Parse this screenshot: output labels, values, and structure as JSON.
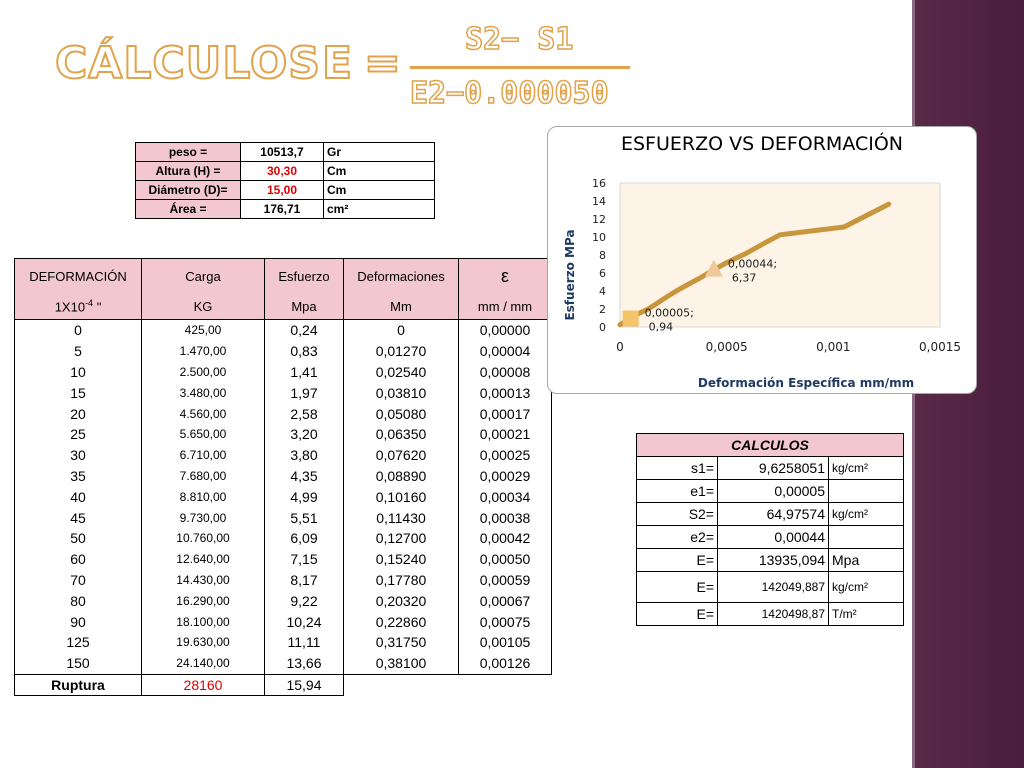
{
  "title": {
    "main": "CÁLCULOS",
    "e": "E",
    "equals": "=",
    "numerator": "S2− S1",
    "denominator": "E2−0.000050"
  },
  "props": [
    {
      "label": "peso =",
      "value": "10513,7",
      "unit": "Gr",
      "red": false
    },
    {
      "label": "Altura (H) =",
      "value": "30,30",
      "unit": "Cm",
      "red": true
    },
    {
      "label": "Diámetro (D)=",
      "value": "15,00",
      "unit": "Cm",
      "red": true
    },
    {
      "label": "Área =",
      "value": "176,71",
      "unit": "cm²",
      "red": false
    }
  ],
  "main_table": {
    "headers1": [
      "DEFORMACIÓN",
      "Carga",
      "Esfuerzo",
      "Deformaciones",
      "ε"
    ],
    "headers2": [
      "1X10-4 \"",
      "KG",
      "Mpa",
      "Mm",
      "mm / mm"
    ],
    "rows": [
      [
        "0",
        "425,00",
        "0,24",
        "0",
        "0,00000"
      ],
      [
        "5",
        "1.470,00",
        "0,83",
        "0,01270",
        "0,00004"
      ],
      [
        "10",
        "2.500,00",
        "1,41",
        "0,02540",
        "0,00008"
      ],
      [
        "15",
        "3.480,00",
        "1,97",
        "0,03810",
        "0,00013"
      ],
      [
        "20",
        "4.560,00",
        "2,58",
        "0,05080",
        "0,00017"
      ],
      [
        "25",
        "5.650,00",
        "3,20",
        "0,06350",
        "0,00021"
      ],
      [
        "30",
        "6.710,00",
        "3,80",
        "0,07620",
        "0,00025"
      ],
      [
        "35",
        "7.680,00",
        "4,35",
        "0,08890",
        "0,00029"
      ],
      [
        "40",
        "8.810,00",
        "4,99",
        "0,10160",
        "0,00034"
      ],
      [
        "45",
        "9.730,00",
        "5,51",
        "0,11430",
        "0,00038"
      ],
      [
        "50",
        "10.760,00",
        "6,09",
        "0,12700",
        "0,00042"
      ],
      [
        "60",
        "12.640,00",
        "7,15",
        "0,15240",
        "0,00050"
      ],
      [
        "70",
        "14.430,00",
        "8,17",
        "0,17780",
        "0,00059"
      ],
      [
        "80",
        "16.290,00",
        "9,22",
        "0,20320",
        "0,00067"
      ],
      [
        "90",
        "18.100,00",
        "10,24",
        "0,22860",
        "0,00075"
      ],
      [
        "125",
        "19.630,00",
        "11,11",
        "0,31750",
        "0,00105"
      ],
      [
        "150",
        "24.140,00",
        "13,66",
        "0,38100",
        "0,00126"
      ]
    ],
    "rupture": {
      "label": "Ruptura",
      "load": "28160",
      "stress": "15,94"
    }
  },
  "calculos": {
    "header": "CALCULOS",
    "rows": [
      {
        "k": "s1=",
        "v": "9,6258051",
        "u": "kg/cm²"
      },
      {
        "k": "e1=",
        "v": "0,00005",
        "u": ""
      },
      {
        "k": "S2=",
        "v": "64,97574",
        "u": "kg/cm²"
      },
      {
        "k": "e2=",
        "v": "0,00044",
        "u": ""
      },
      {
        "k": "E=",
        "v": "13935,094",
        "u": "Mpa"
      },
      {
        "k": "E=",
        "v": "142049,887",
        "u": "kg/cm²"
      },
      {
        "k": "E=",
        "v": "1420498,87",
        "u": "T/m²"
      }
    ]
  },
  "chart_data": {
    "type": "line",
    "title": "ESFUERZO VS DEFORMACIÓN",
    "xlabel": "Deformación Específica mm/mm",
    "ylabel": "Esfuerzo  MPa",
    "xlim": [
      0,
      0.0015
    ],
    "ylim": [
      0,
      16
    ],
    "x_ticks": [
      "0",
      "0,0005",
      "0,001",
      "0,0015"
    ],
    "y_ticks": [
      "0",
      "2",
      "4",
      "6",
      "8",
      "10",
      "12",
      "14",
      "16"
    ],
    "grid": false,
    "series": [
      {
        "x": [
          0,
          4e-05,
          8e-05,
          0.00013,
          0.00017,
          0.00021,
          0.00025,
          0.00029,
          0.00034,
          0.00038,
          0.00042,
          0.0005,
          0.00059,
          0.00067,
          0.00075,
          0.00105,
          0.00126
        ],
        "y": [
          0.24,
          0.83,
          1.41,
          1.97,
          2.58,
          3.2,
          3.8,
          4.35,
          4.99,
          5.51,
          6.09,
          7.15,
          8.17,
          9.22,
          10.24,
          11.11,
          13.66
        ],
        "color": "#c8963c"
      }
    ],
    "markers": [
      {
        "x": 5e-05,
        "y": 0.94,
        "shape": "square",
        "color": "#f5c36a",
        "label_line1": "0,00005;",
        "label_line2": "0,94"
      },
      {
        "x": 0.00044,
        "y": 6.37,
        "shape": "triangle",
        "color": "#f0c89a",
        "label_line1": "0,00044;",
        "label_line2": "6,37"
      }
    ],
    "plot_bg": "#fdf3e6"
  }
}
